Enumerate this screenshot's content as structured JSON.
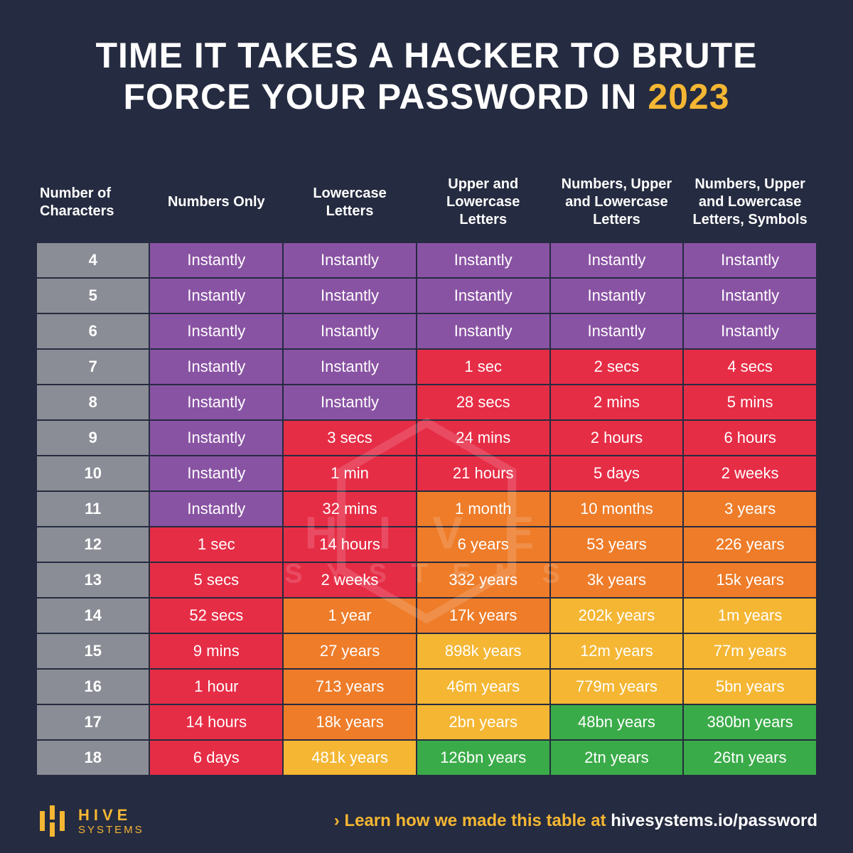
{
  "colors": {
    "background": "#252b40",
    "accent": "#f4b633",
    "header_gray": "#8b8d96",
    "purple": "#8953a3",
    "red": "#e62d46",
    "orange": "#ee7c29",
    "yellow": "#f4b633",
    "green": "#3aab49",
    "text": "#ffffff"
  },
  "title": {
    "line1": "TIME IT TAKES A HACKER TO BRUTE",
    "line2_prefix": "FORCE YOUR PASSWORD IN ",
    "year": "2023",
    "fontsize": 50
  },
  "table": {
    "type": "heatmap-table",
    "columns": [
      "Number of Characters",
      "Numbers Only",
      "Lowercase Letters",
      "Upper and Lowercase Letters",
      "Numbers, Upper and Lowercase Letters",
      "Numbers, Upper and Lowercase Letters, Symbols"
    ],
    "col_widths_pct": [
      14.5,
      17.1,
      17.1,
      17.1,
      17.1,
      17.1
    ],
    "header_fontsize": 20,
    "cell_fontsize": 22,
    "rows": [
      {
        "n": "4",
        "cells": [
          {
            "v": "Instantly",
            "c": "purple"
          },
          {
            "v": "Instantly",
            "c": "purple"
          },
          {
            "v": "Instantly",
            "c": "purple"
          },
          {
            "v": "Instantly",
            "c": "purple"
          },
          {
            "v": "Instantly",
            "c": "purple"
          }
        ]
      },
      {
        "n": "5",
        "cells": [
          {
            "v": "Instantly",
            "c": "purple"
          },
          {
            "v": "Instantly",
            "c": "purple"
          },
          {
            "v": "Instantly",
            "c": "purple"
          },
          {
            "v": "Instantly",
            "c": "purple"
          },
          {
            "v": "Instantly",
            "c": "purple"
          }
        ]
      },
      {
        "n": "6",
        "cells": [
          {
            "v": "Instantly",
            "c": "purple"
          },
          {
            "v": "Instantly",
            "c": "purple"
          },
          {
            "v": "Instantly",
            "c": "purple"
          },
          {
            "v": "Instantly",
            "c": "purple"
          },
          {
            "v": "Instantly",
            "c": "purple"
          }
        ]
      },
      {
        "n": "7",
        "cells": [
          {
            "v": "Instantly",
            "c": "purple"
          },
          {
            "v": "Instantly",
            "c": "purple"
          },
          {
            "v": "1 sec",
            "c": "red"
          },
          {
            "v": "2 secs",
            "c": "red"
          },
          {
            "v": "4 secs",
            "c": "red"
          }
        ]
      },
      {
        "n": "8",
        "cells": [
          {
            "v": "Instantly",
            "c": "purple"
          },
          {
            "v": "Instantly",
            "c": "purple"
          },
          {
            "v": "28 secs",
            "c": "red"
          },
          {
            "v": "2 mins",
            "c": "red"
          },
          {
            "v": "5 mins",
            "c": "red"
          }
        ]
      },
      {
        "n": "9",
        "cells": [
          {
            "v": "Instantly",
            "c": "purple"
          },
          {
            "v": "3 secs",
            "c": "red"
          },
          {
            "v": "24 mins",
            "c": "red"
          },
          {
            "v": "2 hours",
            "c": "red"
          },
          {
            "v": "6 hours",
            "c": "red"
          }
        ]
      },
      {
        "n": "10",
        "cells": [
          {
            "v": "Instantly",
            "c": "purple"
          },
          {
            "v": "1 min",
            "c": "red"
          },
          {
            "v": "21 hours",
            "c": "red"
          },
          {
            "v": "5 days",
            "c": "red"
          },
          {
            "v": "2 weeks",
            "c": "red"
          }
        ]
      },
      {
        "n": "11",
        "cells": [
          {
            "v": "Instantly",
            "c": "purple"
          },
          {
            "v": "32 mins",
            "c": "red"
          },
          {
            "v": "1 month",
            "c": "orange"
          },
          {
            "v": "10 months",
            "c": "orange"
          },
          {
            "v": "3 years",
            "c": "orange"
          }
        ]
      },
      {
        "n": "12",
        "cells": [
          {
            "v": "1 sec",
            "c": "red"
          },
          {
            "v": "14 hours",
            "c": "red"
          },
          {
            "v": "6 years",
            "c": "orange"
          },
          {
            "v": "53 years",
            "c": "orange"
          },
          {
            "v": "226 years",
            "c": "orange"
          }
        ]
      },
      {
        "n": "13",
        "cells": [
          {
            "v": "5 secs",
            "c": "red"
          },
          {
            "v": "2 weeks",
            "c": "red"
          },
          {
            "v": "332 years",
            "c": "orange"
          },
          {
            "v": "3k years",
            "c": "orange"
          },
          {
            "v": "15k years",
            "c": "orange"
          }
        ]
      },
      {
        "n": "14",
        "cells": [
          {
            "v": "52 secs",
            "c": "red"
          },
          {
            "v": "1 year",
            "c": "orange"
          },
          {
            "v": "17k years",
            "c": "orange"
          },
          {
            "v": "202k years",
            "c": "yellow"
          },
          {
            "v": "1m years",
            "c": "yellow"
          }
        ]
      },
      {
        "n": "15",
        "cells": [
          {
            "v": "9 mins",
            "c": "red"
          },
          {
            "v": "27 years",
            "c": "orange"
          },
          {
            "v": "898k years",
            "c": "yellow"
          },
          {
            "v": "12m years",
            "c": "yellow"
          },
          {
            "v": "77m years",
            "c": "yellow"
          }
        ]
      },
      {
        "n": "16",
        "cells": [
          {
            "v": "1 hour",
            "c": "red"
          },
          {
            "v": "713 years",
            "c": "orange"
          },
          {
            "v": "46m years",
            "c": "yellow"
          },
          {
            "v": "779m years",
            "c": "yellow"
          },
          {
            "v": "5bn years",
            "c": "yellow"
          }
        ]
      },
      {
        "n": "17",
        "cells": [
          {
            "v": "14 hours",
            "c": "red"
          },
          {
            "v": "18k years",
            "c": "orange"
          },
          {
            "v": "2bn years",
            "c": "yellow"
          },
          {
            "v": "48bn years",
            "c": "green"
          },
          {
            "v": "380bn years",
            "c": "green"
          }
        ]
      },
      {
        "n": "18",
        "cells": [
          {
            "v": "6 days",
            "c": "red"
          },
          {
            "v": "481k years",
            "c": "yellow"
          },
          {
            "v": "126bn years",
            "c": "green"
          },
          {
            "v": "2tn years",
            "c": "green"
          },
          {
            "v": "26tn years",
            "c": "green"
          }
        ]
      }
    ]
  },
  "logo": {
    "line1": "HIVE",
    "line2": "SYSTEMS"
  },
  "footer": {
    "chevron": "›",
    "lead": " Learn how we made this table at ",
    "tail": "hivesystems.io/password"
  },
  "watermark": {
    "line1": "H I V E",
    "line2": "S Y S T E M S"
  }
}
